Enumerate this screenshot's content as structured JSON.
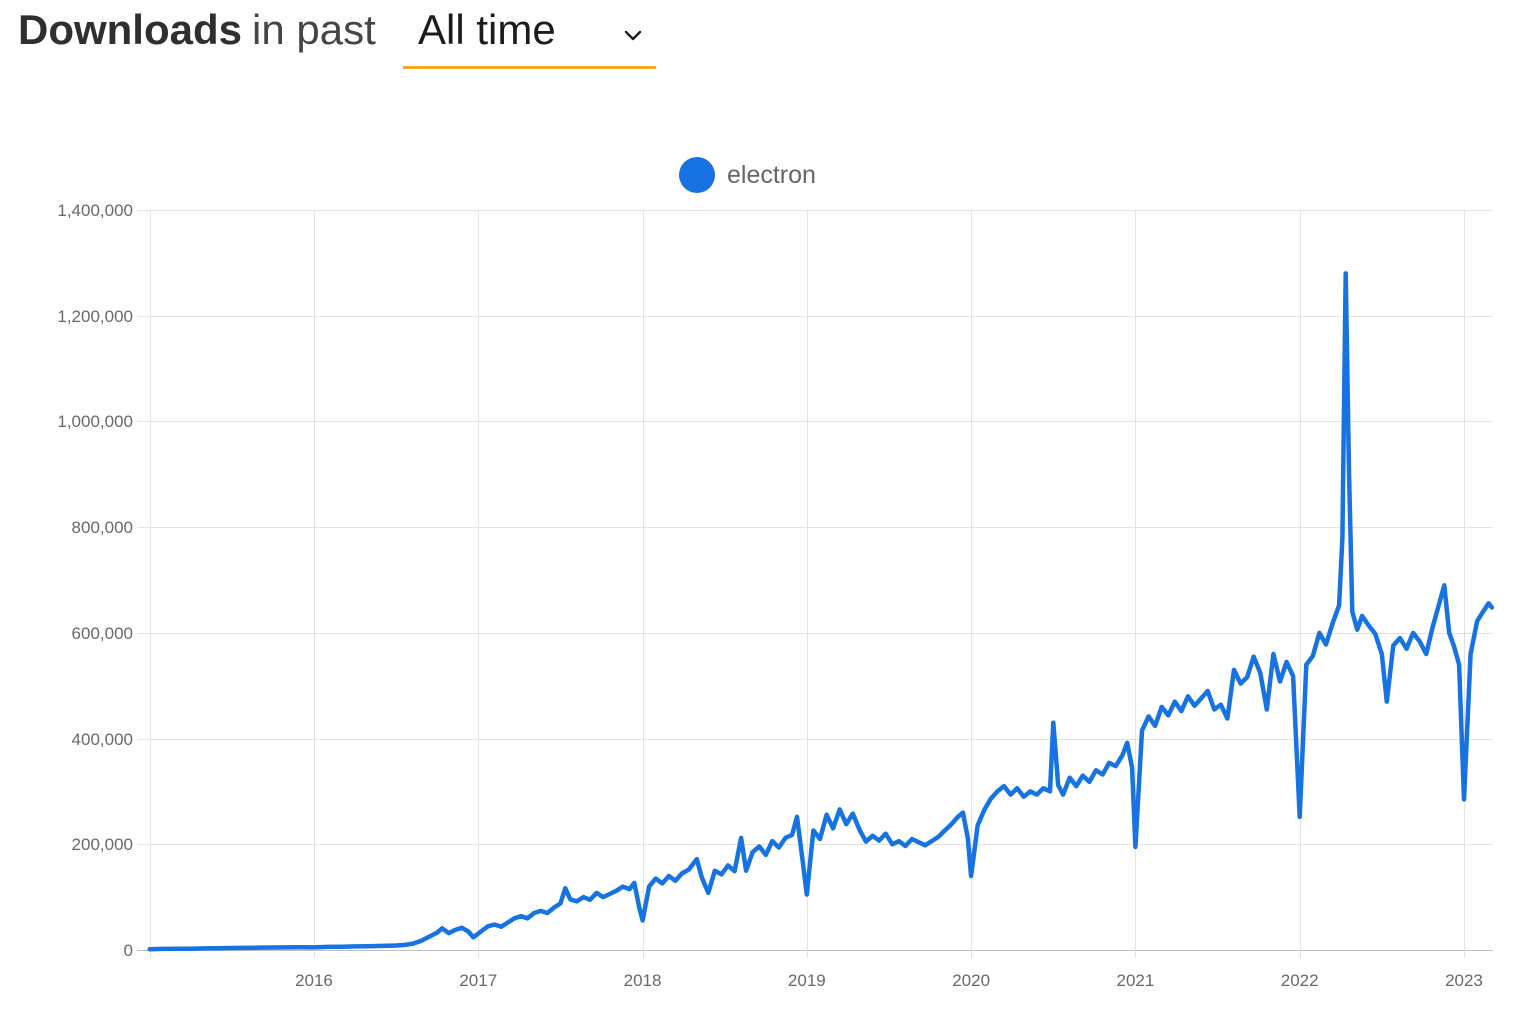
{
  "header": {
    "title_bold": "Downloads",
    "title_rest": "in past",
    "range_value": "All time"
  },
  "colors": {
    "series_blue": "#1673e1",
    "accent_underline": "#f5a623",
    "grid": "#e3e3e3",
    "zero_axis": "#bdbdbd",
    "tick_label": "#68696b"
  },
  "chart_data": {
    "type": "line",
    "title": "Downloads in past All time",
    "xlabel": "",
    "ylabel": "",
    "legend_position": "top-center",
    "grid": true,
    "x_axis": {
      "unit": "year",
      "range": [
        2014.97,
        2023.18
      ],
      "grid_years": [
        2015,
        2016,
        2017,
        2018,
        2019,
        2020,
        2021,
        2022,
        2023
      ],
      "tick_labels": [
        "2016",
        "2017",
        "2018",
        "2019",
        "2020",
        "2021",
        "2022",
        "2023"
      ],
      "tick_values": [
        2016,
        2017,
        2018,
        2019,
        2020,
        2021,
        2022,
        2023
      ]
    },
    "y_axis": {
      "range": [
        0,
        1400000
      ],
      "ticks": [
        {
          "value": 0,
          "label": "0"
        },
        {
          "value": 200000,
          "label": "200,000"
        },
        {
          "value": 400000,
          "label": "400,000"
        },
        {
          "value": 600000,
          "label": "600,000"
        },
        {
          "value": 800000,
          "label": "800,000"
        },
        {
          "value": 1000000,
          "label": "1,000,000"
        },
        {
          "value": 1200000,
          "label": "1,200,000"
        },
        {
          "value": 1400000,
          "label": "1,400,000"
        }
      ]
    },
    "series": [
      {
        "name": "electron",
        "color": "#1673e1",
        "points": [
          [
            2015.0,
            1500
          ],
          [
            2015.08,
            2000
          ],
          [
            2015.17,
            2200
          ],
          [
            2015.25,
            2500
          ],
          [
            2015.33,
            3000
          ],
          [
            2015.42,
            3200
          ],
          [
            2015.5,
            3800
          ],
          [
            2015.58,
            4000
          ],
          [
            2015.67,
            4500
          ],
          [
            2015.75,
            4800
          ],
          [
            2015.83,
            5000
          ],
          [
            2015.92,
            5200
          ],
          [
            2016.0,
            5000
          ],
          [
            2016.08,
            5800
          ],
          [
            2016.17,
            6200
          ],
          [
            2016.25,
            6800
          ],
          [
            2016.33,
            7200
          ],
          [
            2016.42,
            7800
          ],
          [
            2016.5,
            8500
          ],
          [
            2016.55,
            9500
          ],
          [
            2016.6,
            12000
          ],
          [
            2016.65,
            17000
          ],
          [
            2016.7,
            25000
          ],
          [
            2016.75,
            33000
          ],
          [
            2016.78,
            41000
          ],
          [
            2016.82,
            32000
          ],
          [
            2016.86,
            38000
          ],
          [
            2016.9,
            42000
          ],
          [
            2016.94,
            35000
          ],
          [
            2016.97,
            24000
          ],
          [
            2017.02,
            36000
          ],
          [
            2017.06,
            45000
          ],
          [
            2017.1,
            48000
          ],
          [
            2017.14,
            44000
          ],
          [
            2017.18,
            52000
          ],
          [
            2017.22,
            60000
          ],
          [
            2017.26,
            64000
          ],
          [
            2017.3,
            60000
          ],
          [
            2017.34,
            70000
          ],
          [
            2017.38,
            74000
          ],
          [
            2017.42,
            70000
          ],
          [
            2017.46,
            80000
          ],
          [
            2017.5,
            88000
          ],
          [
            2017.53,
            117000
          ],
          [
            2017.56,
            96000
          ],
          [
            2017.6,
            92000
          ],
          [
            2017.64,
            100000
          ],
          [
            2017.68,
            95000
          ],
          [
            2017.72,
            108000
          ],
          [
            2017.76,
            100000
          ],
          [
            2017.8,
            106000
          ],
          [
            2017.84,
            112000
          ],
          [
            2017.88,
            120000
          ],
          [
            2017.92,
            115000
          ],
          [
            2017.95,
            127000
          ],
          [
            2017.98,
            80000
          ],
          [
            2018.0,
            56000
          ],
          [
            2018.04,
            120000
          ],
          [
            2018.08,
            135000
          ],
          [
            2018.12,
            126000
          ],
          [
            2018.16,
            140000
          ],
          [
            2018.2,
            131000
          ],
          [
            2018.24,
            145000
          ],
          [
            2018.28,
            152000
          ],
          [
            2018.33,
            172000
          ],
          [
            2018.36,
            138000
          ],
          [
            2018.4,
            108000
          ],
          [
            2018.44,
            150000
          ],
          [
            2018.48,
            143000
          ],
          [
            2018.52,
            160000
          ],
          [
            2018.56,
            149000
          ],
          [
            2018.6,
            212000
          ],
          [
            2018.63,
            150000
          ],
          [
            2018.67,
            185000
          ],
          [
            2018.71,
            196000
          ],
          [
            2018.75,
            180000
          ],
          [
            2018.79,
            206000
          ],
          [
            2018.83,
            194000
          ],
          [
            2018.87,
            212000
          ],
          [
            2018.91,
            218000
          ],
          [
            2018.94,
            252000
          ],
          [
            2018.97,
            180000
          ],
          [
            2019.0,
            105000
          ],
          [
            2019.04,
            226000
          ],
          [
            2019.08,
            210000
          ],
          [
            2019.12,
            256000
          ],
          [
            2019.16,
            230000
          ],
          [
            2019.2,
            266000
          ],
          [
            2019.24,
            238000
          ],
          [
            2019.28,
            258000
          ],
          [
            2019.32,
            228000
          ],
          [
            2019.36,
            205000
          ],
          [
            2019.4,
            216000
          ],
          [
            2019.44,
            207000
          ],
          [
            2019.48,
            220000
          ],
          [
            2019.52,
            200000
          ],
          [
            2019.56,
            206000
          ],
          [
            2019.6,
            197000
          ],
          [
            2019.64,
            210000
          ],
          [
            2019.68,
            204000
          ],
          [
            2019.72,
            198000
          ],
          [
            2019.76,
            206000
          ],
          [
            2019.8,
            214000
          ],
          [
            2019.84,
            226000
          ],
          [
            2019.88,
            238000
          ],
          [
            2019.92,
            252000
          ],
          [
            2019.95,
            260000
          ],
          [
            2019.98,
            212000
          ],
          [
            2020.0,
            140000
          ],
          [
            2020.04,
            236000
          ],
          [
            2020.08,
            265000
          ],
          [
            2020.12,
            286000
          ],
          [
            2020.16,
            300000
          ],
          [
            2020.2,
            310000
          ],
          [
            2020.24,
            294000
          ],
          [
            2020.28,
            306000
          ],
          [
            2020.32,
            290000
          ],
          [
            2020.36,
            300000
          ],
          [
            2020.4,
            294000
          ],
          [
            2020.44,
            306000
          ],
          [
            2020.48,
            300000
          ],
          [
            2020.5,
            430000
          ],
          [
            2020.53,
            312000
          ],
          [
            2020.56,
            294000
          ],
          [
            2020.6,
            326000
          ],
          [
            2020.64,
            310000
          ],
          [
            2020.68,
            330000
          ],
          [
            2020.72,
            318000
          ],
          [
            2020.76,
            340000
          ],
          [
            2020.8,
            332000
          ],
          [
            2020.84,
            354000
          ],
          [
            2020.88,
            348000
          ],
          [
            2020.92,
            368000
          ],
          [
            2020.95,
            392000
          ],
          [
            2020.98,
            345000
          ],
          [
            2021.0,
            195000
          ],
          [
            2021.04,
            415000
          ],
          [
            2021.08,
            442000
          ],
          [
            2021.12,
            424000
          ],
          [
            2021.16,
            460000
          ],
          [
            2021.2,
            444000
          ],
          [
            2021.24,
            470000
          ],
          [
            2021.28,
            452000
          ],
          [
            2021.32,
            480000
          ],
          [
            2021.36,
            462000
          ],
          [
            2021.4,
            476000
          ],
          [
            2021.44,
            490000
          ],
          [
            2021.48,
            455000
          ],
          [
            2021.52,
            464000
          ],
          [
            2021.56,
            438000
          ],
          [
            2021.6,
            530000
          ],
          [
            2021.64,
            504000
          ],
          [
            2021.68,
            516000
          ],
          [
            2021.72,
            555000
          ],
          [
            2021.76,
            524000
          ],
          [
            2021.8,
            455000
          ],
          [
            2021.84,
            560000
          ],
          [
            2021.88,
            508000
          ],
          [
            2021.92,
            545000
          ],
          [
            2021.96,
            518000
          ],
          [
            2022.0,
            252000
          ],
          [
            2022.04,
            540000
          ],
          [
            2022.08,
            556000
          ],
          [
            2022.12,
            600000
          ],
          [
            2022.16,
            578000
          ],
          [
            2022.2,
            618000
          ],
          [
            2022.24,
            652000
          ],
          [
            2022.26,
            780000
          ],
          [
            2022.28,
            1280000
          ],
          [
            2022.3,
            905000
          ],
          [
            2022.32,
            640000
          ],
          [
            2022.35,
            606000
          ],
          [
            2022.38,
            632000
          ],
          [
            2022.42,
            614000
          ],
          [
            2022.46,
            598000
          ],
          [
            2022.5,
            560000
          ],
          [
            2022.53,
            470000
          ],
          [
            2022.57,
            576000
          ],
          [
            2022.61,
            590000
          ],
          [
            2022.65,
            570000
          ],
          [
            2022.69,
            600000
          ],
          [
            2022.73,
            584000
          ],
          [
            2022.77,
            560000
          ],
          [
            2022.81,
            612000
          ],
          [
            2022.85,
            656000
          ],
          [
            2022.88,
            690000
          ],
          [
            2022.91,
            600000
          ],
          [
            2022.94,
            574000
          ],
          [
            2022.97,
            540000
          ],
          [
            2023.0,
            285000
          ],
          [
            2023.04,
            560000
          ],
          [
            2023.08,
            622000
          ],
          [
            2023.12,
            642000
          ],
          [
            2023.15,
            656000
          ],
          [
            2023.17,
            648000
          ]
        ]
      }
    ]
  }
}
